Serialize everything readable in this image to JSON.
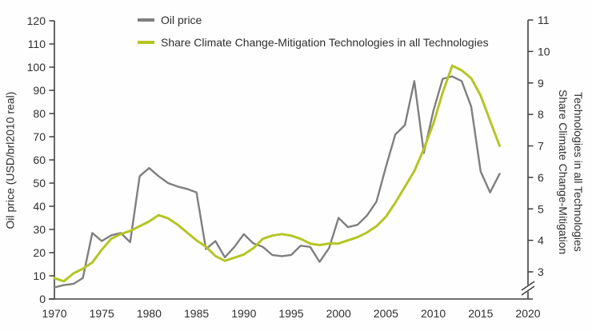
{
  "chart_data": {
    "type": "line",
    "x": [
      1970,
      1971,
      1972,
      1973,
      1974,
      1975,
      1976,
      1977,
      1978,
      1979,
      1980,
      1981,
      1982,
      1983,
      1984,
      1985,
      1986,
      1987,
      1988,
      1989,
      1990,
      1991,
      1992,
      1993,
      1994,
      1995,
      1996,
      1997,
      1998,
      1999,
      2000,
      2001,
      2002,
      2003,
      2004,
      2005,
      2006,
      2007,
      2008,
      2009,
      2010,
      2011,
      2012,
      2013,
      2014,
      2015,
      2016,
      2017
    ],
    "series": [
      {
        "name": "Oil price",
        "axis": "left",
        "color": "#7f7f7f",
        "values": [
          5,
          6,
          6.5,
          9,
          28.5,
          25,
          27.5,
          28.5,
          24.5,
          53,
          56.5,
          53,
          50,
          48.5,
          47.5,
          46,
          21.5,
          25,
          18,
          22.5,
          28,
          24,
          22.5,
          19,
          18.5,
          19,
          23,
          22.5,
          16,
          22,
          35,
          31,
          32,
          36,
          42,
          57,
          71,
          75,
          94,
          63,
          81,
          95,
          96,
          94,
          83,
          55,
          46,
          54
        ]
      },
      {
        "name": "Share Climate Change-Mitigation Technologies in all Technologies",
        "axis": "right",
        "color": "#b3c625",
        "values": [
          2.8,
          2.7,
          2.95,
          3.1,
          3.3,
          3.7,
          4.05,
          4.2,
          4.3,
          4.45,
          4.6,
          4.8,
          4.7,
          4.5,
          4.25,
          4.0,
          3.8,
          3.5,
          3.35,
          3.45,
          3.55,
          3.75,
          4.05,
          4.15,
          4.2,
          4.15,
          4.05,
          3.9,
          3.85,
          3.9,
          3.9,
          4.0,
          4.1,
          4.25,
          4.45,
          4.75,
          5.2,
          5.7,
          6.2,
          6.9,
          7.7,
          8.7,
          9.55,
          9.4,
          9.15,
          8.6,
          7.8,
          7.0
        ]
      }
    ],
    "left_axis": {
      "label": "Oil price (USD/brl2010 real)",
      "ticks": [
        0,
        10,
        20,
        30,
        40,
        50,
        60,
        70,
        80,
        90,
        100,
        110,
        120
      ],
      "range": [
        0,
        120
      ]
    },
    "right_axis": {
      "label_line1": "Share Climate Change-Mitigation",
      "label_line2": "Technologies in all Technologies",
      "ticks": [
        3,
        4,
        5,
        6,
        7,
        8,
        9,
        10,
        11
      ],
      "axis_break": true
    },
    "x_axis": {
      "ticks": [
        1970,
        1975,
        1980,
        1985,
        1990,
        1995,
        2000,
        2005,
        2010,
        2015,
        2020
      ],
      "range": [
        1970,
        2020
      ]
    },
    "legend": [
      {
        "label": "Oil price",
        "color": "#7f7f7f"
      },
      {
        "label": "Share Climate Change-Mitigation Technologies in all Technologies",
        "color": "#b3c625"
      }
    ],
    "legend_position": "top",
    "grid": "off",
    "colors": {
      "axis": "#3f3f3f",
      "text": "#2e2e2e",
      "background": "#fefefe"
    }
  }
}
